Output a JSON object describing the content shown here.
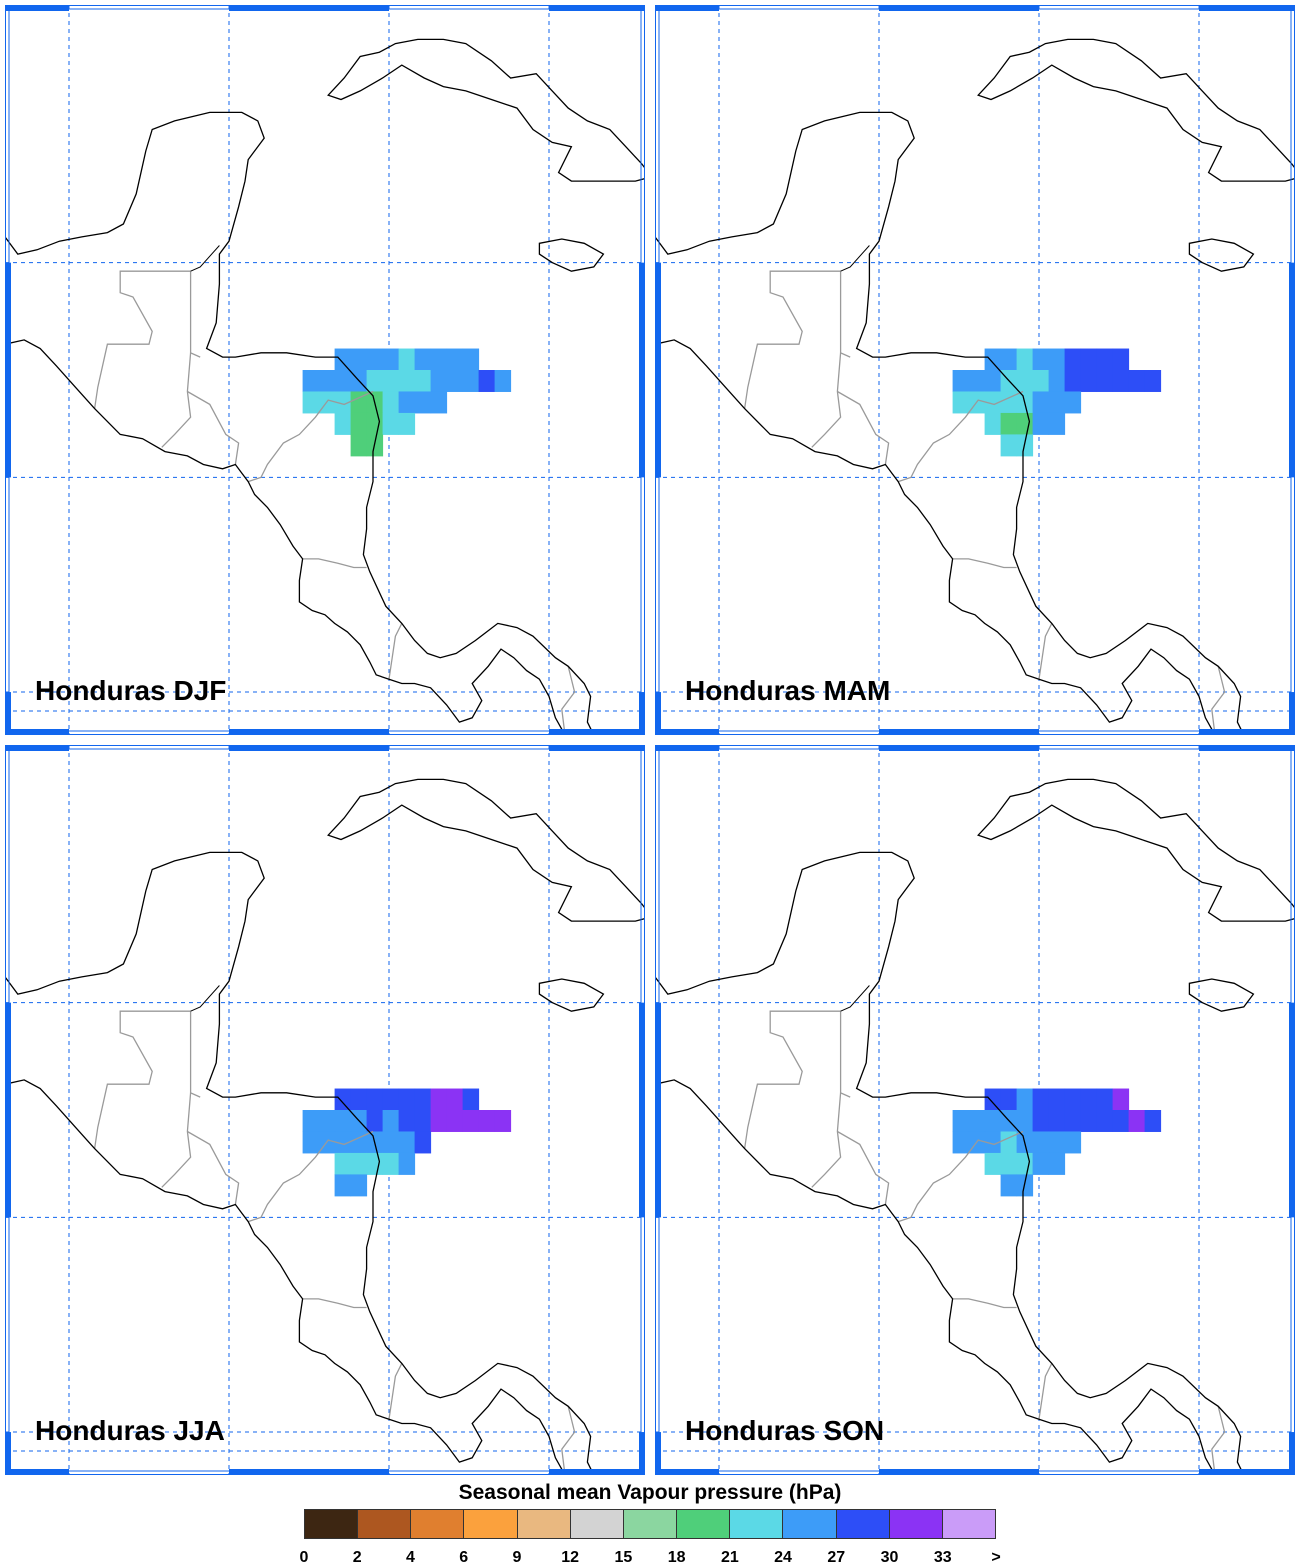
{
  "panels": [
    {
      "title": "Honduras DJF",
      "cells": [
        [
          9,
          0,
          24
        ],
        [
          10,
          0,
          24
        ],
        [
          11,
          0,
          24
        ],
        [
          12,
          0,
          24
        ],
        [
          13,
          0,
          21
        ],
        [
          14,
          0,
          24
        ],
        [
          15,
          0,
          24
        ],
        [
          16,
          0,
          24
        ],
        [
          17,
          0,
          24
        ],
        [
          7,
          1,
          24
        ],
        [
          8,
          1,
          24
        ],
        [
          9,
          1,
          24
        ],
        [
          10,
          1,
          24
        ],
        [
          11,
          1,
          21
        ],
        [
          12,
          1,
          21
        ],
        [
          13,
          1,
          21
        ],
        [
          14,
          1,
          21
        ],
        [
          15,
          1,
          24
        ],
        [
          16,
          1,
          24
        ],
        [
          17,
          1,
          24
        ],
        [
          18,
          1,
          27
        ],
        [
          19,
          1,
          24
        ],
        [
          7,
          2,
          21
        ],
        [
          8,
          2,
          21
        ],
        [
          9,
          2,
          21
        ],
        [
          10,
          2,
          18
        ],
        [
          11,
          2,
          18
        ],
        [
          12,
          2,
          21
        ],
        [
          13,
          2,
          24
        ],
        [
          14,
          2,
          24
        ],
        [
          15,
          2,
          24
        ],
        [
          9,
          3,
          21
        ],
        [
          10,
          3,
          18
        ],
        [
          11,
          3,
          18
        ],
        [
          12,
          3,
          21
        ],
        [
          13,
          3,
          21
        ],
        [
          10,
          4,
          18
        ],
        [
          11,
          4,
          18
        ]
      ]
    },
    {
      "title": "Honduras MAM",
      "cells": [
        [
          9,
          0,
          24
        ],
        [
          10,
          0,
          24
        ],
        [
          11,
          0,
          21
        ],
        [
          12,
          0,
          24
        ],
        [
          13,
          0,
          24
        ],
        [
          14,
          0,
          27
        ],
        [
          15,
          0,
          27
        ],
        [
          16,
          0,
          27
        ],
        [
          17,
          0,
          27
        ],
        [
          7,
          1,
          24
        ],
        [
          8,
          1,
          24
        ],
        [
          9,
          1,
          24
        ],
        [
          10,
          1,
          21
        ],
        [
          11,
          1,
          21
        ],
        [
          12,
          1,
          21
        ],
        [
          13,
          1,
          24
        ],
        [
          14,
          1,
          27
        ],
        [
          15,
          1,
          27
        ],
        [
          16,
          1,
          27
        ],
        [
          17,
          1,
          27
        ],
        [
          18,
          1,
          27
        ],
        [
          19,
          1,
          27
        ],
        [
          7,
          2,
          21
        ],
        [
          8,
          2,
          21
        ],
        [
          9,
          2,
          21
        ],
        [
          10,
          2,
          21
        ],
        [
          11,
          2,
          21
        ],
        [
          12,
          2,
          24
        ],
        [
          13,
          2,
          24
        ],
        [
          14,
          2,
          24
        ],
        [
          9,
          3,
          21
        ],
        [
          10,
          3,
          18
        ],
        [
          11,
          3,
          18
        ],
        [
          12,
          3,
          24
        ],
        [
          13,
          3,
          24
        ],
        [
          10,
          4,
          21
        ],
        [
          11,
          4,
          21
        ]
      ]
    },
    {
      "title": "Honduras JJA",
      "cells": [
        [
          9,
          0,
          27
        ],
        [
          10,
          0,
          27
        ],
        [
          11,
          0,
          27
        ],
        [
          12,
          0,
          27
        ],
        [
          13,
          0,
          27
        ],
        [
          14,
          0,
          27
        ],
        [
          15,
          0,
          30
        ],
        [
          16,
          0,
          30
        ],
        [
          17,
          0,
          27
        ],
        [
          7,
          1,
          24
        ],
        [
          8,
          1,
          24
        ],
        [
          9,
          1,
          24
        ],
        [
          10,
          1,
          24
        ],
        [
          11,
          1,
          27
        ],
        [
          12,
          1,
          24
        ],
        [
          13,
          1,
          27
        ],
        [
          14,
          1,
          27
        ],
        [
          15,
          1,
          30
        ],
        [
          16,
          1,
          30
        ],
        [
          17,
          1,
          30
        ],
        [
          18,
          1,
          30
        ],
        [
          19,
          1,
          30
        ],
        [
          7,
          2,
          24
        ],
        [
          8,
          2,
          24
        ],
        [
          9,
          2,
          24
        ],
        [
          10,
          2,
          24
        ],
        [
          11,
          2,
          24
        ],
        [
          12,
          2,
          24
        ],
        [
          13,
          2,
          24
        ],
        [
          14,
          2,
          27
        ],
        [
          9,
          3,
          21
        ],
        [
          10,
          3,
          21
        ],
        [
          11,
          3,
          21
        ],
        [
          12,
          3,
          21
        ],
        [
          13,
          3,
          24
        ],
        [
          9,
          4,
          24
        ],
        [
          10,
          4,
          24
        ]
      ]
    },
    {
      "title": "Honduras SON",
      "cells": [
        [
          9,
          0,
          27
        ],
        [
          10,
          0,
          27
        ],
        [
          11,
          0,
          24
        ],
        [
          12,
          0,
          27
        ],
        [
          13,
          0,
          27
        ],
        [
          14,
          0,
          27
        ],
        [
          15,
          0,
          27
        ],
        [
          16,
          0,
          27
        ],
        [
          17,
          0,
          30
        ],
        [
          7,
          1,
          24
        ],
        [
          8,
          1,
          24
        ],
        [
          9,
          1,
          24
        ],
        [
          10,
          1,
          24
        ],
        [
          11,
          1,
          24
        ],
        [
          12,
          1,
          27
        ],
        [
          13,
          1,
          27
        ],
        [
          14,
          1,
          27
        ],
        [
          15,
          1,
          27
        ],
        [
          16,
          1,
          27
        ],
        [
          17,
          1,
          27
        ],
        [
          18,
          1,
          30
        ],
        [
          19,
          1,
          27
        ],
        [
          7,
          2,
          24
        ],
        [
          8,
          2,
          24
        ],
        [
          9,
          2,
          24
        ],
        [
          10,
          2,
          21
        ],
        [
          11,
          2,
          24
        ],
        [
          12,
          2,
          24
        ],
        [
          13,
          2,
          24
        ],
        [
          14,
          2,
          24
        ],
        [
          9,
          3,
          21
        ],
        [
          10,
          3,
          21
        ],
        [
          11,
          3,
          21
        ],
        [
          12,
          3,
          24
        ],
        [
          13,
          3,
          24
        ],
        [
          10,
          4,
          24
        ],
        [
          11,
          4,
          24
        ]
      ]
    }
  ],
  "legend": {
    "title": "Seasonal mean Vapour pressure (hPa)",
    "colors": [
      "#3d2612",
      "#ad5720",
      "#e07f2f",
      "#fba13d",
      "#e9b880",
      "#d3d3d3",
      "#8bd6a0",
      "#4fcf7a",
      "#5bd9e6",
      "#3d9cf8",
      "#2d4ef7",
      "#8b33f4",
      "#ca9cf8"
    ],
    "ticks": [
      "0",
      "2",
      "4",
      "6",
      "9",
      "12",
      "15",
      "18",
      "21",
      "24",
      "27",
      "30",
      "33",
      ">"
    ]
  },
  "colors": {
    "frame": "#1166ee",
    "grid": "#1166ee",
    "coast": "#000000",
    "borders": "#9a9a9a"
  }
}
